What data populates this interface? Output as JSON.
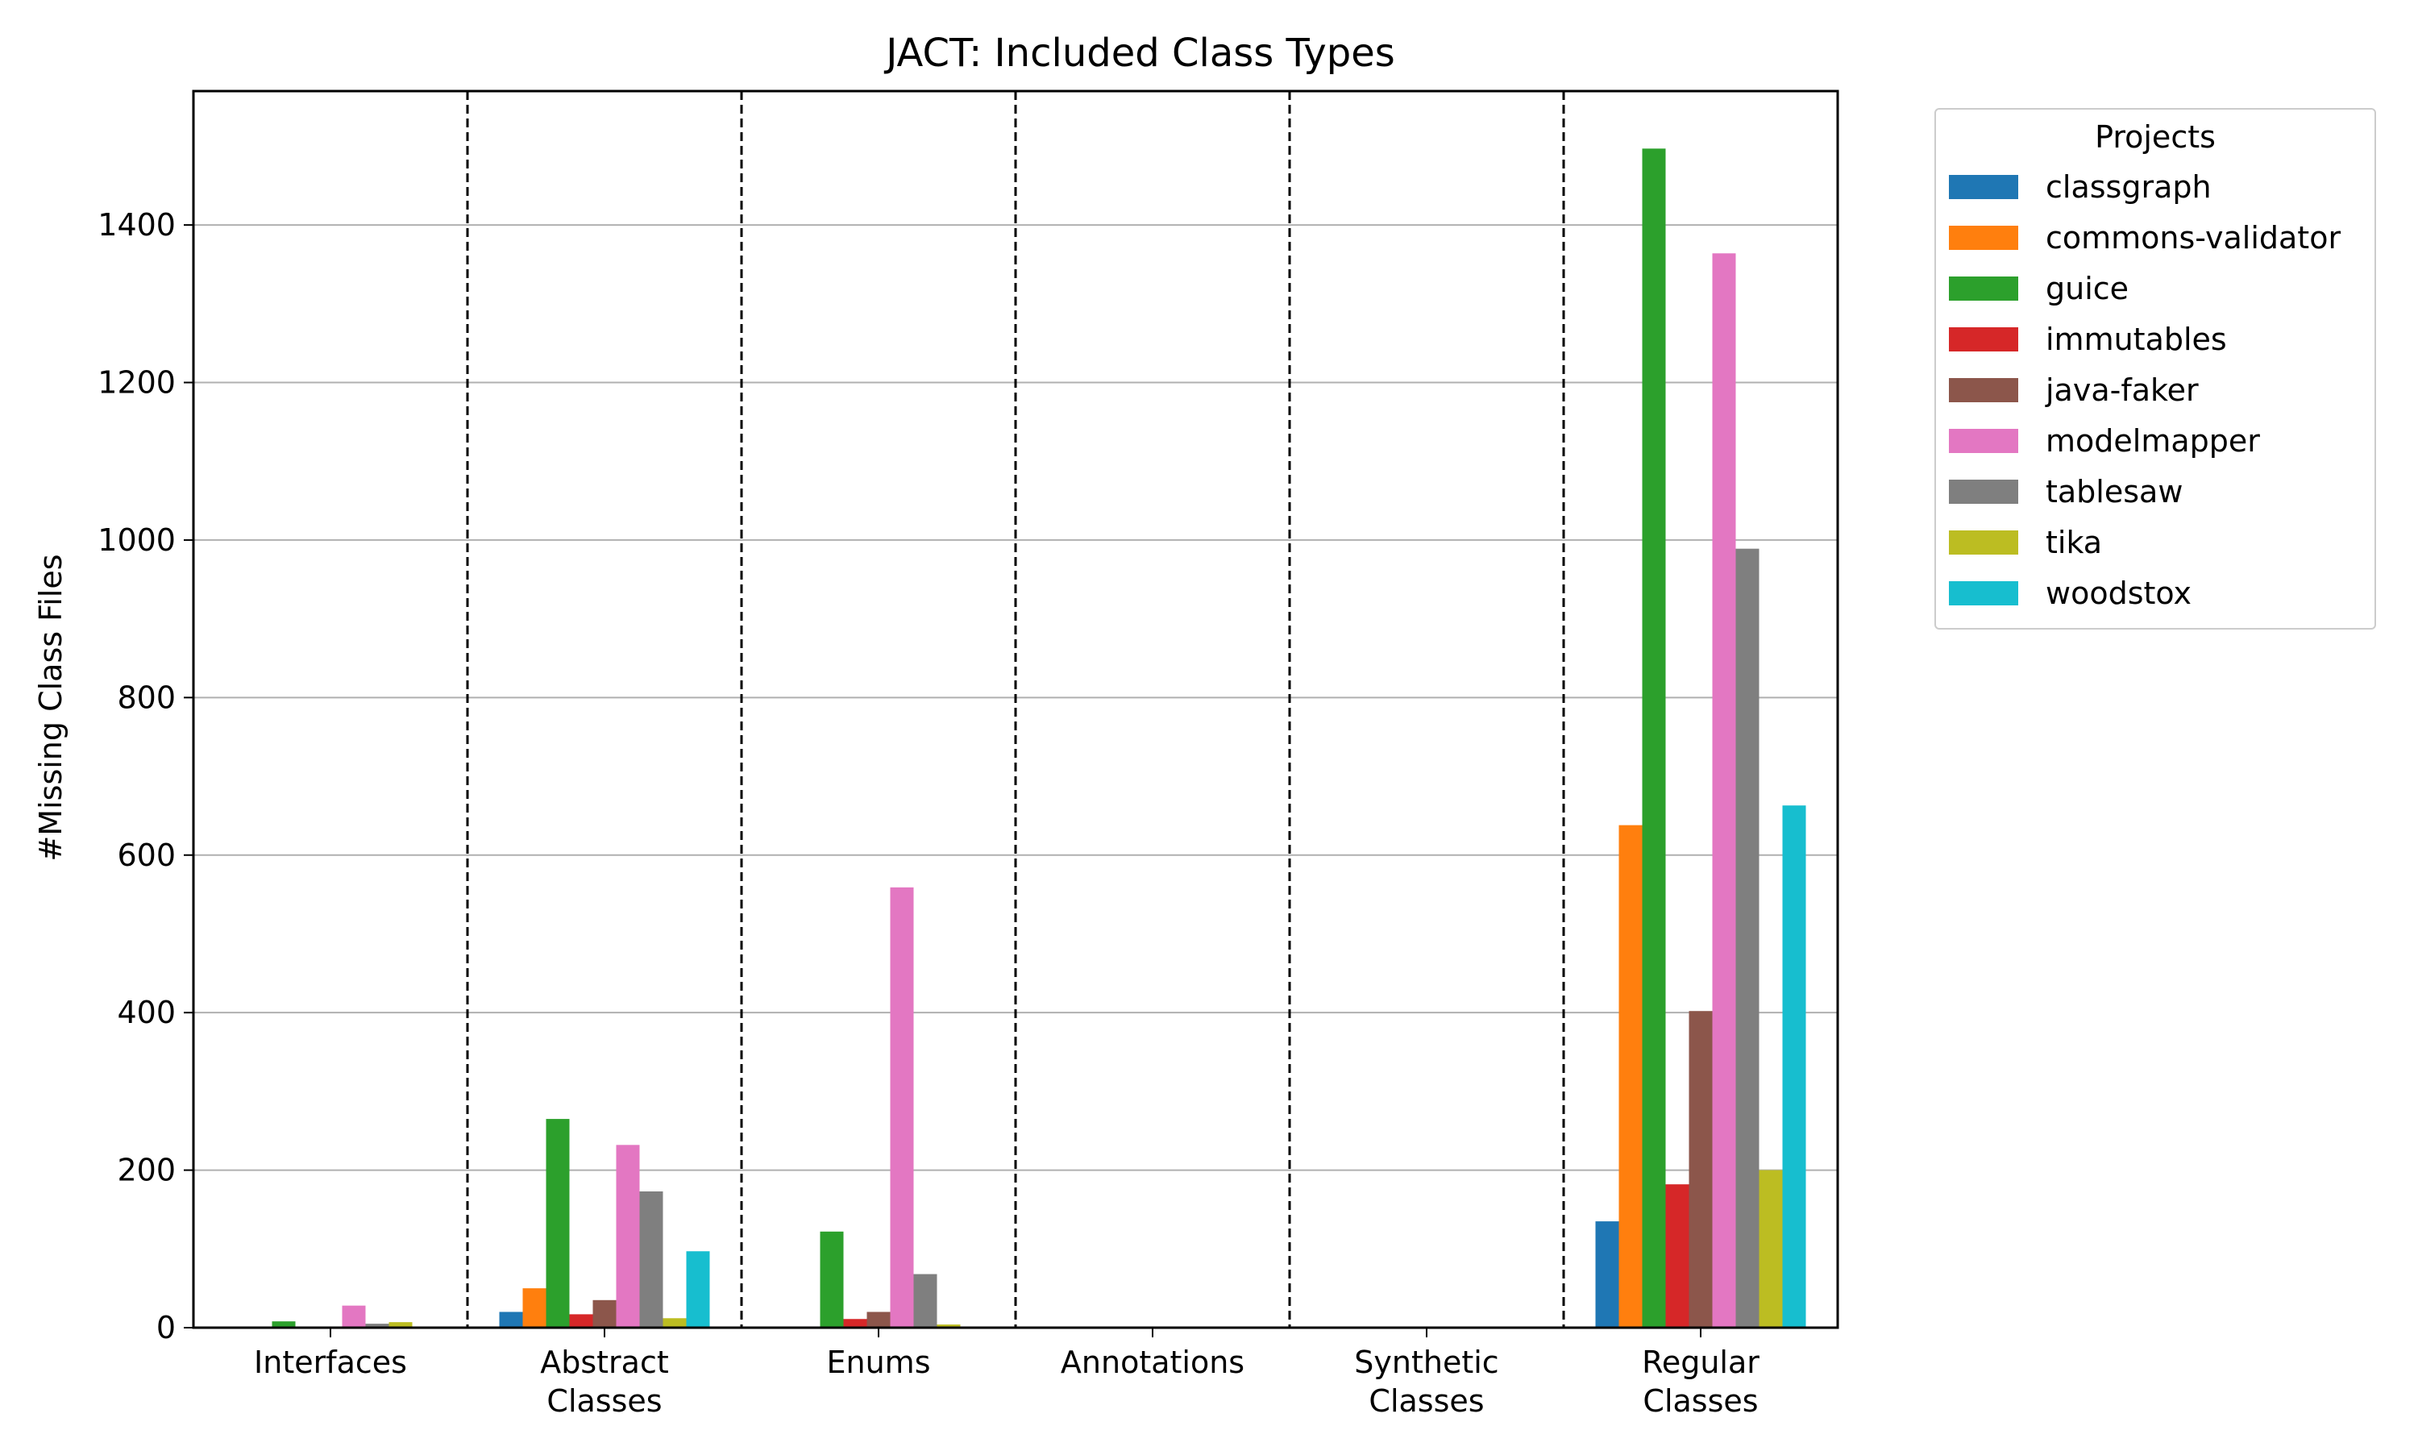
{
  "chart_data": {
    "type": "bar",
    "title": "JACT: Included Class Types",
    "xlabel": "",
    "ylabel": "#Missing Class Files",
    "ylim": [
      0,
      1570
    ],
    "yticks": [
      0,
      200,
      400,
      600,
      800,
      1000,
      1200,
      1400
    ],
    "grid": "y",
    "separators": "dashed",
    "categories": [
      [
        "Interfaces"
      ],
      [
        "Abstract",
        "Classes"
      ],
      [
        "Enums"
      ],
      [
        "Annotations"
      ],
      [
        "Synthetic",
        "Classes"
      ],
      [
        "Regular",
        "Classes"
      ]
    ],
    "legend": {
      "title": "Projects",
      "placement": "outside right, top"
    },
    "series": [
      {
        "name": "classgraph",
        "color": "#1f77b4",
        "values": [
          0,
          20,
          0,
          0,
          0,
          135
        ]
      },
      {
        "name": "commons-validator",
        "color": "#ff7f0e",
        "values": [
          0,
          50,
          0,
          0,
          0,
          638
        ]
      },
      {
        "name": "guice",
        "color": "#2ca02c",
        "values": [
          8,
          265,
          122,
          0,
          0,
          1497
        ]
      },
      {
        "name": "immutables",
        "color": "#d62728",
        "values": [
          0,
          17,
          11,
          0,
          0,
          182
        ]
      },
      {
        "name": "java-faker",
        "color": "#8c564b",
        "values": [
          0,
          35,
          20,
          0,
          0,
          402
        ]
      },
      {
        "name": "modelmapper",
        "color": "#e377c2",
        "values": [
          28,
          232,
          559,
          0,
          0,
          1364
        ]
      },
      {
        "name": "tablesaw",
        "color": "#7f7f7f",
        "values": [
          5,
          173,
          68,
          0,
          0,
          989
        ]
      },
      {
        "name": "tika",
        "color": "#bcbd22",
        "values": [
          7,
          12,
          4,
          0,
          0,
          200
        ]
      },
      {
        "name": "woodstox",
        "color": "#17becf",
        "values": [
          0,
          97,
          0,
          0,
          0,
          663
        ]
      }
    ]
  }
}
